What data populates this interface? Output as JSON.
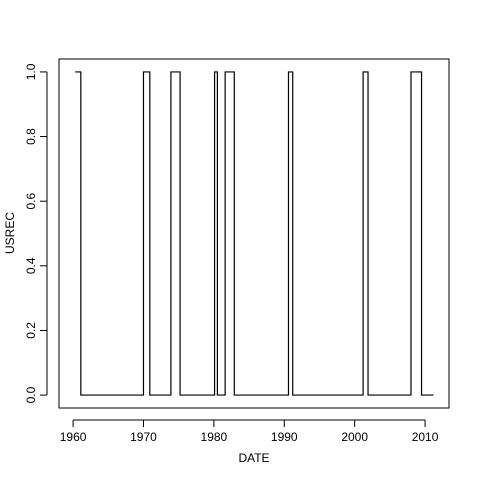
{
  "chart_data": {
    "type": "line",
    "line_style": "step",
    "title": "",
    "xlabel": "DATE",
    "ylabel": "USREC",
    "xlim": [
      1958.0,
      2013.4
    ],
    "ylim": [
      -0.04,
      1.04
    ],
    "xticks": [
      1960,
      1970,
      1980,
      1990,
      2000,
      2010
    ],
    "xtick_labels": [
      "1960",
      "1970",
      "1980",
      "1990",
      "2000",
      "2010"
    ],
    "yticks": [
      0.0,
      0.2,
      0.4,
      0.6,
      0.8,
      1.0
    ],
    "ytick_labels": [
      "0.0",
      "0.2",
      "0.4",
      "0.6",
      "0.8",
      "1.0"
    ],
    "grid": false,
    "legend": "none",
    "line_color": "#000000",
    "series": [
      {
        "values": [
          [
            1960.3,
            1
          ],
          [
            1961.1,
            1
          ],
          [
            1961.1,
            0
          ],
          [
            1970.0,
            0
          ],
          [
            1970.0,
            1
          ],
          [
            1970.9,
            1
          ],
          [
            1970.9,
            0
          ],
          [
            1973.9,
            0
          ],
          [
            1973.9,
            1
          ],
          [
            1975.2,
            1
          ],
          [
            1975.2,
            0
          ],
          [
            1980.1,
            0
          ],
          [
            1980.1,
            1
          ],
          [
            1980.5,
            1
          ],
          [
            1980.5,
            0
          ],
          [
            1981.6,
            0
          ],
          [
            1981.6,
            1
          ],
          [
            1982.9,
            1
          ],
          [
            1982.9,
            0
          ],
          [
            1990.6,
            0
          ],
          [
            1990.6,
            1
          ],
          [
            1991.2,
            1
          ],
          [
            1991.2,
            0
          ],
          [
            2001.2,
            0
          ],
          [
            2001.2,
            1
          ],
          [
            2001.9,
            1
          ],
          [
            2001.9,
            0
          ],
          [
            2008.0,
            0
          ],
          [
            2008.0,
            1
          ],
          [
            2009.5,
            1
          ],
          [
            2009.5,
            0
          ],
          [
            2011.2,
            0
          ]
        ]
      }
    ]
  }
}
